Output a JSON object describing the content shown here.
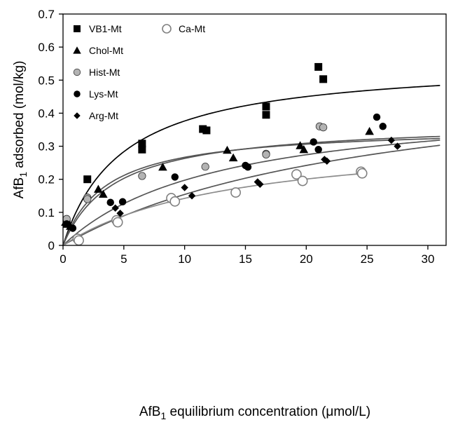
{
  "chart_data": {
    "type": "scatter",
    "title": "",
    "xlabel": {
      "main": "AfB",
      "sub": "1",
      "rest": " equilibrium  concentration (μmol/L)"
    },
    "ylabel": {
      "main": "AfB",
      "sub": "1",
      "rest": " adsorbed (mol/kg)"
    },
    "xlim": [
      0,
      31.5
    ],
    "ylim": [
      0,
      0.7
    ],
    "xticks": [
      0,
      5,
      10,
      15,
      20,
      25,
      30
    ],
    "yticks": [
      0,
      0.1,
      0.2,
      0.3,
      0.4,
      0.5,
      0.6,
      0.7
    ],
    "grid": false,
    "legend_position": "top-left",
    "series": [
      {
        "name": "VB1-Mt",
        "marker": "square",
        "color": "#000000",
        "points": [
          [
            0.3,
            0.065
          ],
          [
            2.0,
            0.2
          ],
          [
            6.5,
            0.308
          ],
          [
            6.5,
            0.29
          ],
          [
            11.5,
            0.352
          ],
          [
            11.8,
            0.348
          ],
          [
            16.7,
            0.42
          ],
          [
            16.7,
            0.395
          ],
          [
            21.0,
            0.54
          ],
          [
            21.4,
            0.503
          ]
        ],
        "fit": {
          "model": "langmuir",
          "qmax": 0.56,
          "K": 0.205,
          "x_range": [
            0,
            31
          ],
          "color": "#000000"
        }
      },
      {
        "name": "Chol-Mt",
        "marker": "triangle",
        "color": "#000000",
        "points": [
          [
            0.2,
            0.07
          ],
          [
            0.6,
            0.058
          ],
          [
            2.9,
            0.17
          ],
          [
            3.3,
            0.155
          ],
          [
            8.2,
            0.237
          ],
          [
            13.5,
            0.288
          ],
          [
            14.0,
            0.265
          ],
          [
            19.5,
            0.302
          ],
          [
            19.8,
            0.29
          ],
          [
            25.2,
            0.345
          ]
        ],
        "fit": {
          "model": "langmuir",
          "qmax": 0.36,
          "K": 0.285,
          "x_range": [
            0,
            31
          ],
          "color": "#555555"
        }
      },
      {
        "name": "Hist-Mt",
        "marker": "circle",
        "color": "#b3b3b3",
        "points": [
          [
            0.3,
            0.08
          ],
          [
            2.0,
            0.145
          ],
          [
            2.0,
            0.14
          ],
          [
            6.5,
            0.21
          ],
          [
            11.7,
            0.238
          ],
          [
            16.7,
            0.277
          ],
          [
            16.7,
            0.275
          ],
          [
            21.1,
            0.36
          ],
          [
            21.4,
            0.357
          ]
        ],
        "fit": {
          "model": "langmuir",
          "qmax": 0.375,
          "K": 0.235,
          "x_range": [
            0,
            31
          ],
          "color": "#555555"
        }
      },
      {
        "name": "Lys-Mt",
        "marker": "circle",
        "color": "#000000",
        "points": [
          [
            0.3,
            0.065
          ],
          [
            0.8,
            0.052
          ],
          [
            4.9,
            0.132
          ],
          [
            3.9,
            0.13
          ],
          [
            9.2,
            0.207
          ],
          [
            15.0,
            0.242
          ],
          [
            15.2,
            0.237
          ],
          [
            20.6,
            0.313
          ],
          [
            21.0,
            0.29
          ],
          [
            25.8,
            0.388
          ],
          [
            26.3,
            0.36
          ]
        ],
        "fit": {
          "model": "langmuir",
          "qmax": 0.45,
          "K": 0.078,
          "x_range": [
            0,
            31
          ],
          "color": "#555555"
        }
      },
      {
        "name": "Arg-Mt",
        "marker": "diamond",
        "color": "#000000",
        "points": [
          [
            4.3,
            0.113
          ],
          [
            4.7,
            0.097
          ],
          [
            10.0,
            0.175
          ],
          [
            10.6,
            0.15
          ],
          [
            16.0,
            0.192
          ],
          [
            16.2,
            0.185
          ],
          [
            21.5,
            0.26
          ],
          [
            21.7,
            0.255
          ],
          [
            27.0,
            0.318
          ],
          [
            27.5,
            0.3
          ]
        ],
        "fit": {
          "model": "langmuir",
          "qmax": 0.56,
          "K": 0.038,
          "x_range": [
            0,
            31
          ],
          "color": "#555555"
        }
      },
      {
        "name": "Ca-Mt",
        "marker": "open-circle",
        "color": "#808080",
        "points": [
          [
            1.2,
            0.02
          ],
          [
            1.3,
            0.015
          ],
          [
            4.4,
            0.076
          ],
          [
            4.5,
            0.07
          ],
          [
            8.9,
            0.143
          ],
          [
            9.2,
            0.133
          ],
          [
            14.2,
            0.16
          ],
          [
            19.2,
            0.215
          ],
          [
            19.7,
            0.195
          ],
          [
            24.5,
            0.223
          ],
          [
            24.6,
            0.218
          ]
        ],
        "fit": {
          "model": "langmuir",
          "qmax": 0.34,
          "K": 0.072,
          "x_range": [
            0,
            24.6
          ],
          "color": "#8c8c8c"
        }
      }
    ]
  }
}
